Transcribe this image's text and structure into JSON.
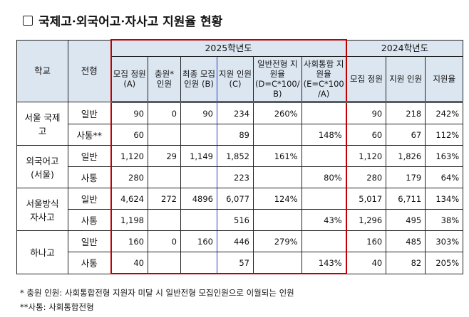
{
  "title": "국제고·외국어고·자사고 지원율 현황",
  "headers": {
    "school": "학교",
    "type": "전형",
    "y2025": "2025학년도",
    "y2024": "2024학년도",
    "cols2025": [
      "모집 정원 (A)",
      "충원* 인원",
      "최종 모집 인원 (B)",
      "지원 인원 (C)",
      "일반전형 지원율 (D=C*100/ B)",
      "사회통합 지원율 (E=C*100 /A)"
    ],
    "cols2024": [
      "모집 정원",
      "지원 인원",
      "지원율"
    ]
  },
  "schools": [
    {
      "name": "서울 국제고",
      "rows": [
        {
          "type": "일반",
          "v": [
            "90",
            "0",
            "90",
            "234",
            "260%",
            "",
            "90",
            "218",
            "242%"
          ]
        },
        {
          "type": "사통**",
          "v": [
            "60",
            "",
            "",
            "89",
            "",
            "148%",
            "60",
            "67",
            "112%"
          ]
        }
      ]
    },
    {
      "name": "외국어고 (서울)",
      "rows": [
        {
          "type": "일반",
          "v": [
            "1,120",
            "29",
            "1,149",
            "1,852",
            "161%",
            "",
            "1,120",
            "1,826",
            "163%"
          ]
        },
        {
          "type": "사통",
          "v": [
            "280",
            "",
            "",
            "223",
            "",
            "80%",
            "280",
            "179",
            "64%"
          ]
        }
      ]
    },
    {
      "name": "서울방식 자사고",
      "rows": [
        {
          "type": "일반",
          "v": [
            "4,624",
            "272",
            "4896",
            "6,077",
            "124%",
            "",
            "5,017",
            "6,711",
            "134%"
          ]
        },
        {
          "type": "사통",
          "v": [
            "1,198",
            "",
            "",
            "516",
            "",
            "43%",
            "1,296",
            "495",
            "38%"
          ]
        }
      ]
    },
    {
      "name": "하나고",
      "rows": [
        {
          "type": "일반",
          "v": [
            "160",
            "0",
            "160",
            "446",
            "279%",
            "",
            "160",
            "485",
            "303%"
          ]
        },
        {
          "type": "사통",
          "v": [
            "40",
            "",
            "",
            "57",
            "",
            "143%",
            "40",
            "82",
            "205%"
          ]
        }
      ]
    }
  ],
  "notes": [
    "* 충원 인원: 사회통합전형 지원자 미달 시 일반전형 모집인원으로 이월되는 인원",
    "**사통: 사회통합전형"
  ]
}
